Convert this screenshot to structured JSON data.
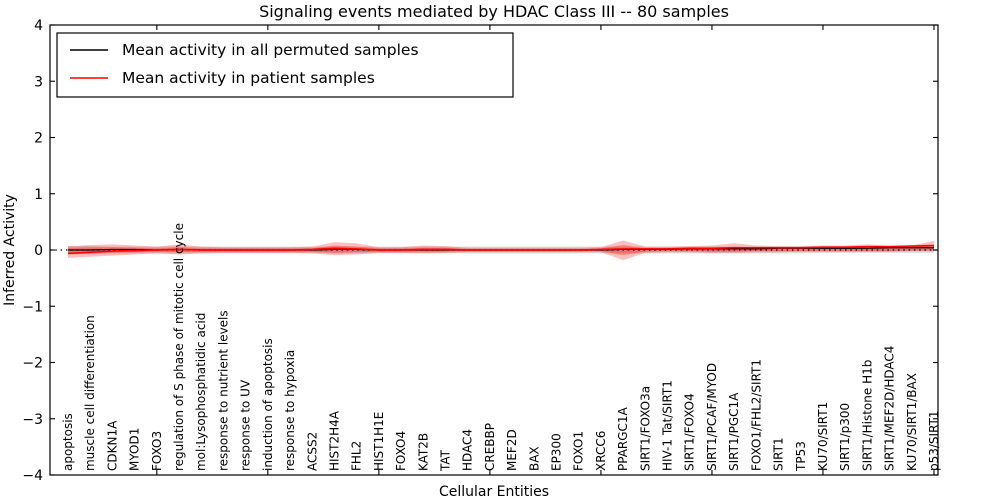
{
  "figure": {
    "background": "#ffffff"
  },
  "chart_data": {
    "type": "area",
    "title": "Signaling events mediated by HDAC Class III -- 80 samples",
    "xlabel": "Cellular Entities",
    "ylabel": "Inferred Activity",
    "ylim": [
      -4,
      4
    ],
    "grid": false,
    "zero_line_style": "dotted",
    "legend_position": "upper-left",
    "ytick_values": [
      4,
      3,
      2,
      1,
      0,
      -1,
      -2,
      -3,
      -4
    ],
    "ytick_labels": [
      "4",
      "3",
      "2",
      "1",
      "0",
      "−1",
      "−2",
      "−3",
      "−4"
    ],
    "xtick_every": 5,
    "categories": [
      "apoptosis",
      "muscle cell differentiation",
      "CDKN1A",
      "MYOD1",
      "FOXO3",
      "regulation of S phase of mitotic cell cycle",
      "mol:Lysophosphatidic acid",
      "response to nutrient levels",
      "response to UV",
      "induction of apoptosis",
      "response to hypoxia",
      "ACSS2",
      "HIST2H4A",
      "FHL2",
      "HIST1H1E",
      "FOXO4",
      "KAT2B",
      "TAT",
      "HDAC4",
      "CREBBP",
      "MEF2D",
      "BAX",
      "EP300",
      "FOXO1",
      "XRCC6",
      "PPARGC1A",
      "SIRT1/FOXO3a",
      "HIV-1 Tat/SIRT1",
      "SIRT1/FOXO4",
      "SIRT1/PCAF/MYOD",
      "SIRT1/PGC1A",
      "FOXO1/FHL2/SIRT1",
      "SIRT1",
      "TP53",
      "KU70/SIRT1",
      "SIRT1/p300",
      "SIRT1/Histone H1b",
      "SIRT1/MEF2D/HDAC4",
      "KU70/SIRT1/BAX",
      "p53/SIRT1"
    ],
    "series": [
      {
        "name": "Mean activity in all permuted samples",
        "color": "#000000",
        "values": [
          0.0,
          0.0,
          0.01,
          0.01,
          0.0,
          0.01,
          0.0,
          0.0,
          0.0,
          0.0,
          0.0,
          0.0,
          0.01,
          0.01,
          0.0,
          0.0,
          0.0,
          0.0,
          0.0,
          0.0,
          0.0,
          0.0,
          0.0,
          0.0,
          0.0,
          0.01,
          0.01,
          0.01,
          0.02,
          0.02,
          0.02,
          0.02,
          0.03,
          0.03,
          0.03,
          0.03,
          0.03,
          0.04,
          0.04,
          0.04
        ]
      },
      {
        "name": "Mean activity in patient samples",
        "color": "#ff0000",
        "values": [
          -0.06,
          -0.04,
          -0.02,
          -0.01,
          0.0,
          0.01,
          0.0,
          0.0,
          0.0,
          0.0,
          0.0,
          0.01,
          0.03,
          0.02,
          0.0,
          0.0,
          0.01,
          0.01,
          0.0,
          0.0,
          0.0,
          0.0,
          0.0,
          0.0,
          0.01,
          0.02,
          0.02,
          0.02,
          0.03,
          0.03,
          0.04,
          0.04,
          0.04,
          0.04,
          0.05,
          0.05,
          0.06,
          0.06,
          0.07,
          0.08
        ]
      }
    ],
    "bands": [
      {
        "name": "permuted-samples-range",
        "color": "#999999",
        "opacity": 0.35,
        "upper": [
          0.07,
          0.07,
          0.06,
          0.06,
          0.06,
          0.06,
          0.06,
          0.06,
          0.06,
          0.06,
          0.06,
          0.06,
          0.06,
          0.06,
          0.06,
          0.06,
          0.06,
          0.06,
          0.06,
          0.06,
          0.06,
          0.06,
          0.06,
          0.06,
          0.06,
          0.06,
          0.06,
          0.06,
          0.06,
          0.06,
          0.06,
          0.06,
          0.06,
          0.06,
          0.06,
          0.06,
          0.06,
          0.06,
          0.07,
          0.07
        ],
        "lower": [
          -0.08,
          -0.07,
          -0.06,
          -0.06,
          -0.06,
          -0.06,
          -0.06,
          -0.06,
          -0.06,
          -0.06,
          -0.06,
          -0.06,
          -0.06,
          -0.06,
          -0.06,
          -0.06,
          -0.06,
          -0.06,
          -0.06,
          -0.06,
          -0.06,
          -0.06,
          -0.06,
          -0.06,
          -0.06,
          -0.06,
          -0.06,
          -0.06,
          -0.06,
          -0.06,
          -0.06,
          -0.06,
          -0.06,
          -0.06,
          -0.05,
          -0.05,
          -0.05,
          -0.05,
          -0.05,
          -0.05
        ]
      },
      {
        "name": "patient-samples-range-outer",
        "color": "#ff0000",
        "opacity": 0.25,
        "upper": [
          0.07,
          0.09,
          0.1,
          0.08,
          0.06,
          0.1,
          0.06,
          0.05,
          0.05,
          0.05,
          0.05,
          0.06,
          0.14,
          0.12,
          0.05,
          0.05,
          0.08,
          0.07,
          0.04,
          0.04,
          0.04,
          0.04,
          0.04,
          0.04,
          0.05,
          0.17,
          0.06,
          0.06,
          0.07,
          0.08,
          0.12,
          0.08,
          0.07,
          0.07,
          0.08,
          0.08,
          0.1,
          0.08,
          0.08,
          0.16
        ],
        "lower": [
          -0.14,
          -0.12,
          -0.1,
          -0.08,
          -0.06,
          -0.08,
          -0.06,
          -0.05,
          -0.05,
          -0.05,
          -0.05,
          -0.06,
          -0.09,
          -0.08,
          -0.05,
          -0.05,
          -0.06,
          -0.05,
          -0.04,
          -0.04,
          -0.04,
          -0.04,
          -0.04,
          -0.04,
          -0.04,
          -0.18,
          -0.05,
          -0.04,
          -0.04,
          -0.05,
          -0.05,
          -0.04,
          -0.04,
          -0.03,
          -0.03,
          -0.03,
          -0.03,
          -0.03,
          -0.02,
          -0.02
        ]
      },
      {
        "name": "patient-samples-range-inner",
        "color": "#ff0000",
        "opacity": 0.3,
        "upper": [
          0.04,
          0.05,
          0.05,
          0.04,
          0.03,
          0.05,
          0.03,
          0.03,
          0.03,
          0.03,
          0.03,
          0.03,
          0.08,
          0.06,
          0.03,
          0.03,
          0.04,
          0.04,
          0.02,
          0.02,
          0.02,
          0.02,
          0.02,
          0.02,
          0.03,
          0.09,
          0.03,
          0.03,
          0.04,
          0.04,
          0.06,
          0.04,
          0.04,
          0.04,
          0.04,
          0.04,
          0.05,
          0.04,
          0.04,
          0.09
        ],
        "lower": [
          -0.08,
          -0.06,
          -0.05,
          -0.04,
          -0.03,
          -0.04,
          -0.03,
          -0.03,
          -0.03,
          -0.03,
          -0.03,
          -0.03,
          -0.05,
          -0.04,
          -0.03,
          -0.03,
          -0.03,
          -0.03,
          -0.02,
          -0.02,
          -0.02,
          -0.02,
          -0.02,
          -0.02,
          -0.02,
          -0.09,
          -0.03,
          -0.02,
          -0.02,
          -0.03,
          -0.03,
          -0.02,
          -0.02,
          -0.02,
          -0.02,
          -0.02,
          -0.02,
          -0.02,
          -0.01,
          -0.01
        ]
      }
    ]
  }
}
